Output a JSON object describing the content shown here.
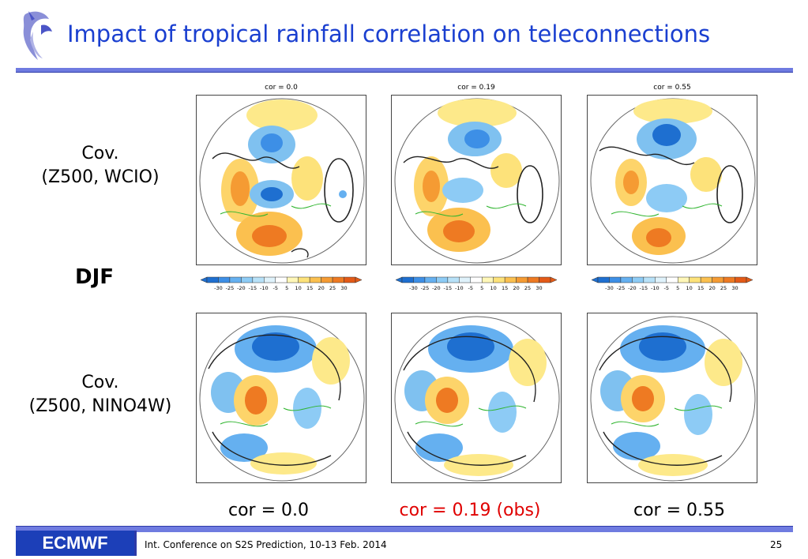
{
  "title": "Impact of tropical rainfall correlation on teleconnections",
  "season_label": "DJF",
  "rows": [
    {
      "label_line1": "Cov.",
      "label_line2": "(Z500, WCIO)"
    },
    {
      "label_line1": "Cov.",
      "label_line2": "(Z500, NINO4W)"
    }
  ],
  "panel_titles": [
    "cor = 0.0",
    "cor = 0.19",
    "cor = 0.55"
  ],
  "colorbar_ticks": [
    "-30",
    "-25",
    "-20",
    "-15",
    "-10",
    "-5",
    "5",
    "10",
    "15",
    "20",
    "25",
    "30"
  ],
  "colorbar_colors": [
    "#1e6fd0",
    "#3d8fe6",
    "#65b0f0",
    "#8dcbf5",
    "#b7e1f8",
    "#dff2fb",
    "#ffffff",
    "#fff7b8",
    "#fde27a",
    "#fbc04f",
    "#f59b33",
    "#ee7a22",
    "#e35a17"
  ],
  "bottom_labels": [
    {
      "text": "cor = 0.0",
      "color": "#000000"
    },
    {
      "text": "cor = 0.19 (obs)",
      "color": "#e00000"
    },
    {
      "text": "cor = 0.55",
      "color": "#000000"
    }
  ],
  "footer": {
    "logo": "ECMWF",
    "conference": "Int. Conference on S2S Prediction, 10-13 Feb. 2014",
    "page": "25"
  }
}
